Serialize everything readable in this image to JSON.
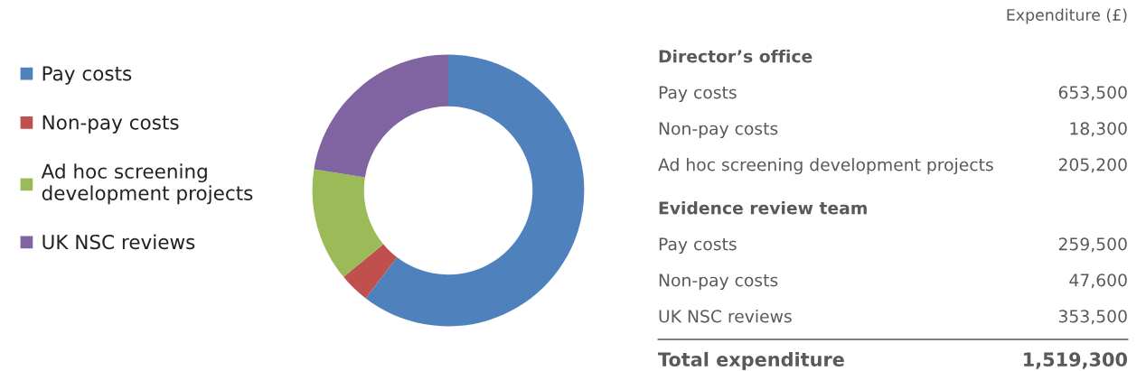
{
  "chart_data": [
    {
      "type": "donut",
      "categories": [
        "Pay costs",
        "Non-pay costs",
        "Ad hoc screening\ndevelopment projects",
        "UK NSC reviews"
      ],
      "values": [
        60.4,
        3.6,
        13.5,
        22.5
      ],
      "colors": [
        "#4f81bd",
        "#c0504d",
        "#9bbb59",
        "#8064a2"
      ],
      "legend": "left"
    },
    {
      "type": "other",
      "title": "Expenditure (£)",
      "categories": [
        "Director’s office",
        "Pay costs",
        "Non-pay costs",
        "Ad hoc screening development projects",
        "Evidence review team",
        "Pay costs",
        "Non-pay costs",
        "UK NSC reviews",
        "Total expenditure"
      ],
      "values": [
        null,
        653500,
        18300,
        205200,
        null,
        259500,
        47600,
        353500,
        1519300
      ],
      "value_labels": [
        null,
        "653,500",
        "18,300",
        "205,200",
        null,
        "259,500",
        "47,600",
        "353,500",
        "1,519,300"
      ]
    }
  ]
}
